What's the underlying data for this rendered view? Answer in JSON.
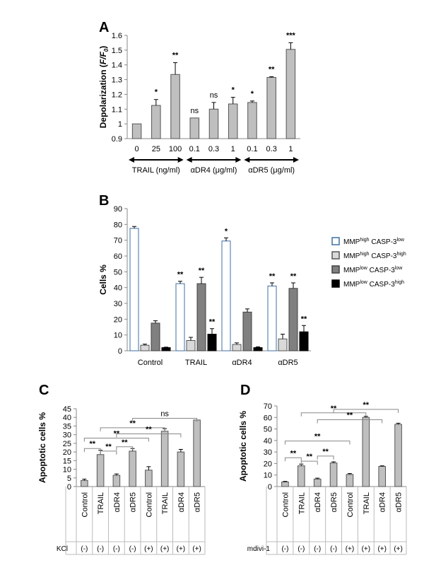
{
  "chart_data": [
    {
      "panel": "A",
      "type": "bar",
      "ylabel_main": "Depolarization (",
      "ylabel_italic": "F/F",
      "ylabel_sub": "0",
      "ylabel_end": ")",
      "ylim": [
        0.9,
        1.6
      ],
      "yticks": [
        "0.9",
        "1",
        "1.1",
        "1.2",
        "1.3",
        "1.4",
        "1.5",
        "1.6"
      ],
      "categories": [
        "0",
        "25",
        "100",
        "0.1",
        "0.3",
        "1",
        "0.1",
        "0.3",
        "1"
      ],
      "values": [
        1.0,
        1.125,
        1.335,
        1.04,
        1.1,
        1.135,
        1.145,
        1.315,
        1.505
      ],
      "errors": [
        0,
        0.04,
        0.08,
        0,
        0.045,
        0.045,
        0.01,
        0.005,
        0.045
      ],
      "significance": [
        "",
        "*",
        "**",
        "ns",
        "ns",
        "*",
        "*",
        "**",
        "***"
      ],
      "groups": [
        "TRAIL (ng/ml)",
        "αDR4 (μg/ml)",
        "αDR5 (μg/ml)"
      ],
      "color": "#bfbfbf"
    },
    {
      "panel": "B",
      "type": "bar",
      "ylabel": "Cells %",
      "ylim": [
        0,
        90
      ],
      "yticks": [
        "0",
        "10",
        "20",
        "30",
        "40",
        "50",
        "60",
        "70",
        "80",
        "90"
      ],
      "categories": [
        "Control",
        "TRAIL",
        "αDR4",
        "αDR5"
      ],
      "series": [
        {
          "name_a": "MMP",
          "sup_a": "high",
          "name_b": " CASP-3",
          "sup_b": "low",
          "values": [
            77.5,
            42.5,
            69.5,
            41
          ],
          "errors": [
            1.2,
            1.5,
            2,
            2
          ],
          "significance": [
            "",
            "**",
            "*",
            "**"
          ],
          "color": "#ffffff",
          "stroke": "#3d6fa5"
        },
        {
          "name_a": "MMP",
          "sup_a": "high",
          "name_b": " CASP-3",
          "sup_b": "high",
          "values": [
            3.5,
            6.5,
            4,
            7.5
          ],
          "errors": [
            0.7,
            2,
            1,
            3
          ],
          "significance": [
            "",
            "",
            "",
            ""
          ],
          "color": "#d9d9d9",
          "stroke": "#555555"
        },
        {
          "name_a": "MMP",
          "sup_a": "low",
          "name_b": " CASP-3",
          "sup_b": "low",
          "values": [
            17.5,
            42.5,
            24.5,
            39.5
          ],
          "errors": [
            1.5,
            4,
            2,
            3.5
          ],
          "significance": [
            "",
            "**",
            "",
            "**"
          ],
          "color": "#808080",
          "stroke": "#404040"
        },
        {
          "name_a": "MMP",
          "sup_a": "low",
          "name_b": " CASP-3",
          "sup_b": "high",
          "values": [
            2,
            10.5,
            2,
            12
          ],
          "errors": [
            0.3,
            3.5,
            0.5,
            4
          ],
          "significance": [
            "",
            "**",
            "",
            "**"
          ],
          "color": "#000000",
          "stroke": "#000000"
        }
      ]
    },
    {
      "panel": "C",
      "type": "bar",
      "ylabel": "Apoptotic cells %",
      "ylim": [
        0,
        45
      ],
      "yticks": [
        "0",
        "5",
        "10",
        "15",
        "20",
        "25",
        "30",
        "35",
        "40",
        "45"
      ],
      "categories": [
        "Control",
        "TRAIL",
        "αDR4",
        "αDR5",
        "Control",
        "TRAIL",
        "αDR4",
        "αDR5"
      ],
      "values": [
        3.5,
        18.5,
        6.5,
        20.5,
        9.5,
        32,
        20,
        38.5
      ],
      "errors": [
        0.8,
        2.5,
        0.8,
        1.5,
        2,
        1.5,
        1.5,
        0
      ],
      "treatment_label": "KCl",
      "treatment": [
        "(-)",
        "(-)",
        "(-)",
        "(-)",
        "(+)",
        "(+)",
        "(+)",
        "(+)"
      ],
      "brackets": [
        {
          "from": 0,
          "to": 1,
          "y": 22,
          "label": "**"
        },
        {
          "from": 1,
          "to": 2,
          "y": 20.5,
          "label": "**"
        },
        {
          "from": 2,
          "to": 3,
          "y": 23,
          "label": "**"
        },
        {
          "from": 0,
          "to": 4,
          "y": 28,
          "label": "**"
        },
        {
          "from": 1,
          "to": 5,
          "y": 34,
          "label": "**"
        },
        {
          "from": 2,
          "to": 6,
          "y": 30.5,
          "label": "**"
        },
        {
          "from": 3,
          "to": 7,
          "y": 39.5,
          "label": "ns"
        }
      ],
      "color": "#bfbfbf"
    },
    {
      "panel": "D",
      "type": "bar",
      "ylabel": "Apoptotic cells %",
      "ylim": [
        0,
        70
      ],
      "yticks": [
        "0",
        "10",
        "20",
        "30",
        "40",
        "50",
        "60",
        "70"
      ],
      "categories": [
        "Control",
        "TRAIL",
        "αDR4",
        "αDR5",
        "Control",
        "TRAIL",
        "αDR4",
        "αDR5"
      ],
      "values": [
        4,
        18,
        6.5,
        20.5,
        10.5,
        60,
        17.5,
        54
      ],
      "errors": [
        0.5,
        1.5,
        0.8,
        1,
        0.8,
        1,
        0.5,
        1
      ],
      "treatment_label": "mdivi-1",
      "treatment": [
        "(-)",
        "(-)",
        "(-)",
        "(-)",
        "(+)",
        "(+)",
        "(+)",
        "(+)"
      ],
      "brackets": [
        {
          "from": 0,
          "to": 1,
          "y": 25,
          "label": "**"
        },
        {
          "from": 1,
          "to": 2,
          "y": 22,
          "label": "**"
        },
        {
          "from": 2,
          "to": 3,
          "y": 26.5,
          "label": "**"
        },
        {
          "from": 0,
          "to": 4,
          "y": 39.5,
          "label": "**"
        },
        {
          "from": 1,
          "to": 5,
          "y": 64,
          "label": "**"
        },
        {
          "from": 2,
          "to": 6,
          "y": 58,
          "label": "**"
        },
        {
          "from": 3,
          "to": 7,
          "y": 67,
          "label": "**"
        }
      ],
      "color": "#bfbfbf"
    }
  ]
}
